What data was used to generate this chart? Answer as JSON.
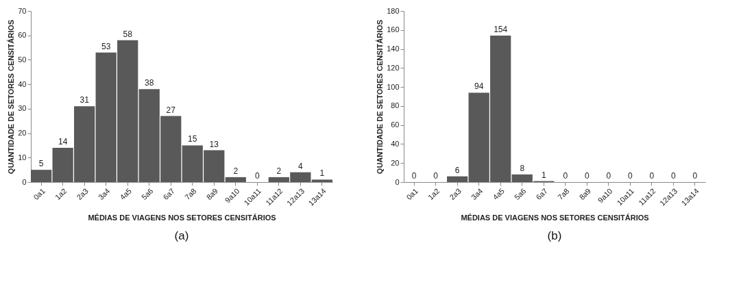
{
  "chart_data": [
    {
      "type": "bar",
      "categories": [
        "0a1",
        "1a2",
        "2a3",
        "3a4",
        "4a5",
        "5a6",
        "6a7",
        "7a8",
        "8a9",
        "9a10",
        "10a11",
        "11a12",
        "12a13",
        "13a14"
      ],
      "series": [
        {
          "color": "#595959",
          "values": [
            5,
            14,
            31,
            53,
            58,
            38,
            27,
            15,
            13,
            2,
            0,
            2,
            4,
            1
          ]
        }
      ],
      "xlabel": "MÉDIAS DE VIAGENS NOS SETORES CENSITÁRIOS",
      "ylabel": "QUANTIDADE DE SETORES CENSITÁRIOS",
      "ylim": [
        0,
        70
      ],
      "yticks": [
        0,
        10,
        20,
        30,
        40,
        50,
        60,
        70
      ],
      "data_labels": true,
      "annotations": [
        "(a)"
      ]
    },
    {
      "type": "bar",
      "categories": [
        "0a1",
        "1a2",
        "2a3",
        "3a4",
        "4a5",
        "5a6",
        "6a7",
        "7a8",
        "8a9",
        "9a10",
        "10a11",
        "11a12",
        "12a13",
        "13a14"
      ],
      "series": [
        {
          "color": "#595959",
          "values": [
            0,
            0,
            6,
            94,
            154,
            8,
            1,
            0,
            0,
            0,
            0,
            0,
            0,
            0
          ]
        }
      ],
      "xlabel": "MÉDIAS DE VIAGENS NOS SETORES CENSITÁRIOS",
      "ylabel": "QUANTIDADE DE SETORES CENSITÁRIOS",
      "ylim": [
        0,
        180
      ],
      "yticks": [
        0,
        20,
        40,
        60,
        80,
        100,
        120,
        140,
        160,
        180
      ],
      "data_labels": true,
      "annotations": [
        "(b)"
      ]
    }
  ]
}
